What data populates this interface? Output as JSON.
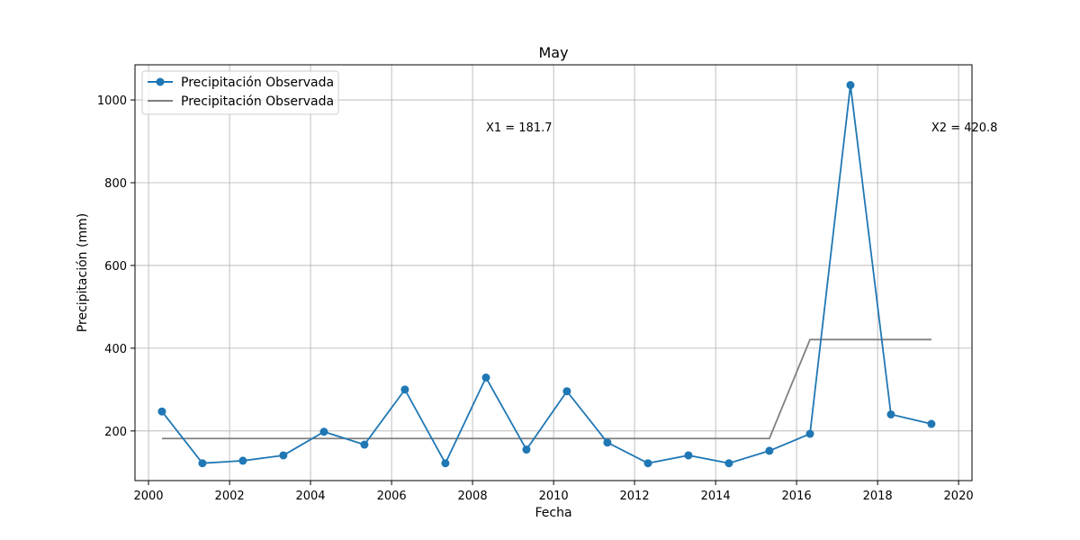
{
  "chart_data": {
    "type": "line",
    "title": "May",
    "xlabel": "Fecha",
    "ylabel": "Precipitación (mm)",
    "xlim": [
      "1999-09-01",
      "2020-05-01"
    ],
    "ylim": [
      80,
      1085
    ],
    "x_ticks": [
      "2000",
      "2002",
      "2004",
      "2006",
      "2008",
      "2010",
      "2012",
      "2014",
      "2016",
      "2018",
      "2020"
    ],
    "y_ticks": [
      200,
      400,
      600,
      800,
      1000
    ],
    "grid": true,
    "legend_position": "top-left",
    "series": [
      {
        "name": "Precipitación Observada",
        "style": "line-marker",
        "color": "#1f77b4",
        "x": [
          "2000-05-01",
          "2001-05-01",
          "2002-05-01",
          "2003-05-01",
          "2004-05-01",
          "2005-05-01",
          "2006-05-01",
          "2007-05-01",
          "2008-05-01",
          "2009-05-01",
          "2010-05-01",
          "2011-05-01",
          "2012-05-01",
          "2013-05-01",
          "2014-05-01",
          "2015-05-01",
          "2016-05-01",
          "2017-05-01",
          "2018-05-01",
          "2019-05-01"
        ],
        "values": [
          247,
          122,
          128,
          141,
          198,
          167,
          300,
          122,
          329,
          155,
          296,
          172,
          122,
          141,
          122,
          152,
          193,
          1036,
          240,
          217
        ]
      },
      {
        "name": "Precipitación Observada",
        "style": "line",
        "color": "#808080",
        "x": [
          "2000-05-01",
          "2015-05-01",
          "2016-05-01",
          "2019-05-01"
        ],
        "values": [
          181.7,
          181.7,
          420.8,
          420.8
        ]
      }
    ],
    "annotations": [
      {
        "text": "X1 = 181.7",
        "x": "2008-05-01",
        "y": 935
      },
      {
        "text": "X2 = 420.8",
        "x": "2019-05-01",
        "y": 935
      }
    ]
  }
}
